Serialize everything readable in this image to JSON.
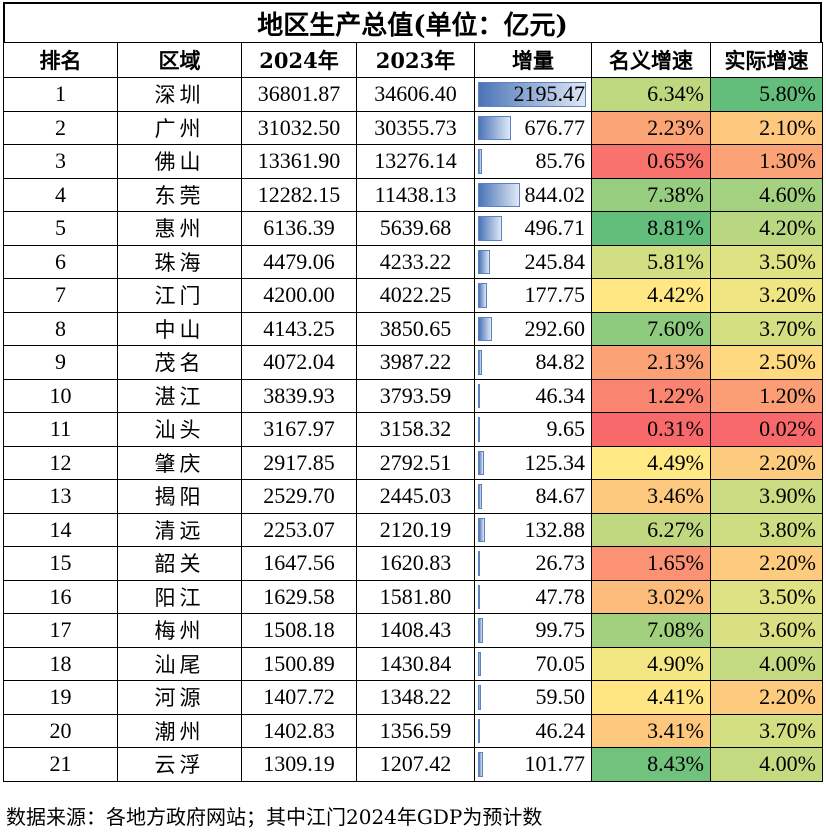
{
  "chart_data": {
    "type": "table",
    "title": "地区生产总值(单位：亿元)",
    "columns": [
      "排名",
      "区域",
      "2024年",
      "2023年",
      "增量",
      "名义增速",
      "实际增速"
    ],
    "rows": [
      {
        "rank": "1",
        "region": "深圳",
        "y2024": "36801.87",
        "y2023": "34606.40",
        "increase": "2195.47",
        "nominal": "6.34%",
        "real": "5.80%"
      },
      {
        "rank": "2",
        "region": "广州",
        "y2024": "31032.50",
        "y2023": "30355.73",
        "increase": "676.77",
        "nominal": "2.23%",
        "real": "2.10%"
      },
      {
        "rank": "3",
        "region": "佛山",
        "y2024": "13361.90",
        "y2023": "13276.14",
        "increase": "85.76",
        "nominal": "0.65%",
        "real": "1.30%"
      },
      {
        "rank": "4",
        "region": "东莞",
        "y2024": "12282.15",
        "y2023": "11438.13",
        "increase": "844.02",
        "nominal": "7.38%",
        "real": "4.60%"
      },
      {
        "rank": "5",
        "region": "惠州",
        "y2024": "6136.39",
        "y2023": "5639.68",
        "increase": "496.71",
        "nominal": "8.81%",
        "real": "4.20%"
      },
      {
        "rank": "6",
        "region": "珠海",
        "y2024": "4479.06",
        "y2023": "4233.22",
        "increase": "245.84",
        "nominal": "5.81%",
        "real": "3.50%"
      },
      {
        "rank": "7",
        "region": "江门",
        "y2024": "4200.00",
        "y2023": "4022.25",
        "increase": "177.75",
        "nominal": "4.42%",
        "real": "3.20%"
      },
      {
        "rank": "8",
        "region": "中山",
        "y2024": "4143.25",
        "y2023": "3850.65",
        "increase": "292.60",
        "nominal": "7.60%",
        "real": "3.70%"
      },
      {
        "rank": "9",
        "region": "茂名",
        "y2024": "4072.04",
        "y2023": "3987.22",
        "increase": "84.82",
        "nominal": "2.13%",
        "real": "2.50%"
      },
      {
        "rank": "10",
        "region": "湛江",
        "y2024": "3839.93",
        "y2023": "3793.59",
        "increase": "46.34",
        "nominal": "1.22%",
        "real": "1.20%"
      },
      {
        "rank": "11",
        "region": "汕头",
        "y2024": "3167.97",
        "y2023": "3158.32",
        "increase": "9.65",
        "nominal": "0.31%",
        "real": "0.02%"
      },
      {
        "rank": "12",
        "region": "肇庆",
        "y2024": "2917.85",
        "y2023": "2792.51",
        "increase": "125.34",
        "nominal": "4.49%",
        "real": "2.20%"
      },
      {
        "rank": "13",
        "region": "揭阳",
        "y2024": "2529.70",
        "y2023": "2445.03",
        "increase": "84.67",
        "nominal": "3.46%",
        "real": "3.90%"
      },
      {
        "rank": "14",
        "region": "清远",
        "y2024": "2253.07",
        "y2023": "2120.19",
        "increase": "132.88",
        "nominal": "6.27%",
        "real": "3.80%"
      },
      {
        "rank": "15",
        "region": "韶关",
        "y2024": "1647.56",
        "y2023": "1620.83",
        "increase": "26.73",
        "nominal": "1.65%",
        "real": "2.20%"
      },
      {
        "rank": "16",
        "region": "阳江",
        "y2024": "1629.58",
        "y2023": "1581.80",
        "increase": "47.78",
        "nominal": "3.02%",
        "real": "3.50%"
      },
      {
        "rank": "17",
        "region": "梅州",
        "y2024": "1508.18",
        "y2023": "1408.43",
        "increase": "99.75",
        "nominal": "7.08%",
        "real": "3.60%"
      },
      {
        "rank": "18",
        "region": "汕尾",
        "y2024": "1500.89",
        "y2023": "1430.84",
        "increase": "70.05",
        "nominal": "4.90%",
        "real": "4.00%"
      },
      {
        "rank": "19",
        "region": "河源",
        "y2024": "1407.72",
        "y2023": "1348.22",
        "increase": "59.50",
        "nominal": "4.41%",
        "real": "2.20%"
      },
      {
        "rank": "20",
        "region": "潮州",
        "y2024": "1402.83",
        "y2023": "1356.59",
        "increase": "46.24",
        "nominal": "3.41%",
        "real": "3.70%"
      },
      {
        "rank": "21",
        "region": "云浮",
        "y2024": "1309.19",
        "y2023": "1207.42",
        "increase": "101.77",
        "nominal": "8.43%",
        "real": "4.00%"
      }
    ],
    "footnote": "数据来源：各地方政府网站；其中江门2024年GDP为预计数",
    "color_scale": {
      "low": "#f8696b",
      "mid": "#ffeb84",
      "high": "#63be7b"
    },
    "bar_color": "#4b74b7"
  }
}
